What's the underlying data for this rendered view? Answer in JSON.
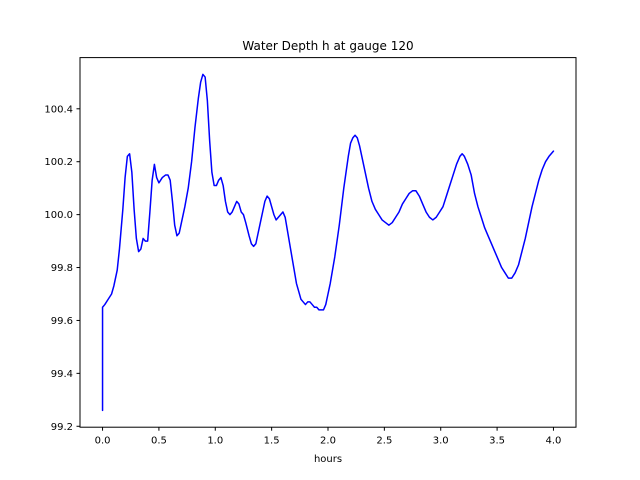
{
  "chart_data": {
    "type": "line",
    "title": "Water Depth h at gauge 120",
    "xlabel": "hours",
    "ylabel": "",
    "xlim": [
      -0.2,
      4.2
    ],
    "ylim": [
      99.1965,
      100.5935
    ],
    "grid": false,
    "legend": null,
    "line_color": "#0000ff",
    "axes_color": "#000000",
    "background_color": "#ffffff",
    "xticks": [
      0.0,
      0.5,
      1.0,
      1.5,
      2.0,
      2.5,
      3.0,
      3.5,
      4.0
    ],
    "xtick_labels": [
      "0.0",
      "0.5",
      "1.0",
      "1.5",
      "2.0",
      "2.5",
      "3.0",
      "3.5",
      "4.0"
    ],
    "yticks": [
      99.2,
      99.4,
      99.6,
      99.8,
      100.0,
      100.2,
      100.4
    ],
    "ytick_labels": [
      "99.2",
      "99.4",
      "99.6",
      "99.8",
      "100.0",
      "100.2",
      "100.4"
    ],
    "series": [
      {
        "name": "water depth h",
        "x": [
          0.0,
          0.0,
          0.02,
          0.05,
          0.08,
          0.1,
          0.13,
          0.15,
          0.18,
          0.2,
          0.22,
          0.24,
          0.26,
          0.28,
          0.3,
          0.32,
          0.34,
          0.36,
          0.38,
          0.4,
          0.42,
          0.44,
          0.46,
          0.48,
          0.5,
          0.53,
          0.56,
          0.58,
          0.6,
          0.62,
          0.64,
          0.66,
          0.68,
          0.7,
          0.73,
          0.76,
          0.79,
          0.82,
          0.85,
          0.87,
          0.89,
          0.91,
          0.93,
          0.95,
          0.97,
          0.99,
          1.01,
          1.03,
          1.05,
          1.07,
          1.09,
          1.11,
          1.13,
          1.15,
          1.17,
          1.19,
          1.21,
          1.23,
          1.25,
          1.27,
          1.3,
          1.32,
          1.34,
          1.36,
          1.38,
          1.4,
          1.42,
          1.44,
          1.46,
          1.48,
          1.5,
          1.52,
          1.54,
          1.56,
          1.58,
          1.6,
          1.62,
          1.64,
          1.66,
          1.68,
          1.7,
          1.72,
          1.74,
          1.76,
          1.78,
          1.8,
          1.82,
          1.84,
          1.86,
          1.88,
          1.9,
          1.92,
          1.94,
          1.96,
          1.98,
          2.0,
          2.02,
          2.04,
          2.06,
          2.08,
          2.1,
          2.12,
          2.14,
          2.16,
          2.18,
          2.2,
          2.22,
          2.24,
          2.26,
          2.28,
          2.3,
          2.33,
          2.36,
          2.39,
          2.42,
          2.45,
          2.48,
          2.51,
          2.54,
          2.57,
          2.6,
          2.63,
          2.66,
          2.69,
          2.72,
          2.75,
          2.78,
          2.81,
          2.84,
          2.87,
          2.9,
          2.93,
          2.96,
          2.99,
          3.02,
          3.05,
          3.08,
          3.11,
          3.14,
          3.17,
          3.19,
          3.21,
          3.24,
          3.27,
          3.3,
          3.33,
          3.36,
          3.39,
          3.42,
          3.45,
          3.48,
          3.51,
          3.54,
          3.57,
          3.6,
          3.63,
          3.66,
          3.69,
          3.72,
          3.75,
          3.78,
          3.81,
          3.84,
          3.87,
          3.9,
          3.93,
          3.96,
          3.98,
          4.0
        ],
        "y": [
          99.26,
          99.65,
          99.66,
          99.68,
          99.7,
          99.73,
          99.79,
          99.87,
          100.02,
          100.14,
          100.22,
          100.23,
          100.16,
          100.02,
          99.91,
          99.86,
          99.87,
          99.91,
          99.9,
          99.9,
          100.01,
          100.13,
          100.19,
          100.14,
          100.12,
          100.14,
          100.15,
          100.15,
          100.13,
          100.05,
          99.96,
          99.92,
          99.93,
          99.97,
          100.03,
          100.1,
          100.2,
          100.33,
          100.44,
          100.5,
          100.53,
          100.52,
          100.43,
          100.28,
          100.16,
          100.11,
          100.11,
          100.13,
          100.14,
          100.11,
          100.05,
          100.01,
          100.0,
          100.01,
          100.03,
          100.05,
          100.04,
          100.01,
          100.0,
          99.97,
          99.92,
          99.89,
          99.88,
          99.89,
          99.93,
          99.97,
          100.01,
          100.05,
          100.07,
          100.06,
          100.03,
          100.0,
          99.98,
          99.99,
          100.0,
          100.01,
          99.99,
          99.94,
          99.89,
          99.84,
          99.79,
          99.74,
          99.71,
          99.68,
          99.67,
          99.66,
          99.67,
          99.67,
          99.66,
          99.65,
          99.65,
          99.64,
          99.64,
          99.64,
          99.66,
          99.7,
          99.74,
          99.79,
          99.84,
          99.9,
          99.96,
          100.03,
          100.1,
          100.16,
          100.22,
          100.27,
          100.29,
          100.3,
          100.29,
          100.26,
          100.22,
          100.16,
          100.1,
          100.05,
          100.02,
          100.0,
          99.98,
          99.97,
          99.96,
          99.97,
          99.99,
          100.01,
          100.04,
          100.06,
          100.08,
          100.09,
          100.09,
          100.07,
          100.04,
          100.01,
          99.99,
          99.98,
          99.99,
          100.01,
          100.03,
          100.07,
          100.11,
          100.15,
          100.19,
          100.22,
          100.23,
          100.22,
          100.19,
          100.15,
          100.08,
          100.03,
          99.99,
          99.95,
          99.92,
          99.89,
          99.86,
          99.83,
          99.8,
          99.78,
          99.76,
          99.76,
          99.78,
          99.81,
          99.86,
          99.91,
          99.97,
          100.03,
          100.08,
          100.13,
          100.17,
          100.2,
          100.22,
          100.23,
          100.24
        ]
      }
    ]
  }
}
